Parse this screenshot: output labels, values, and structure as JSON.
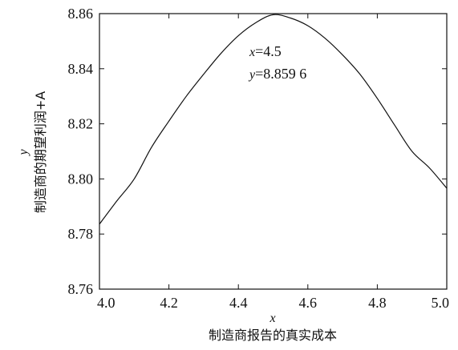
{
  "chart_data": {
    "type": "line",
    "title": "",
    "xlabel_var": "x",
    "xlabel": "制造商报告的真实成本",
    "ylabel_var": "y",
    "ylabel": "制造商的期望利润+A",
    "xlim": [
      4.0,
      5.0
    ],
    "ylim": [
      8.76,
      8.86
    ],
    "xticks": [
      4.0,
      4.2,
      4.4,
      4.6,
      4.8,
      5.0
    ],
    "xtick_labels": [
      "4.0",
      "4.2",
      "4.4",
      "4.6",
      "4.8",
      "5.0"
    ],
    "yticks": [
      8.76,
      8.78,
      8.8,
      8.82,
      8.84,
      8.86
    ],
    "ytick_labels": [
      "8.76",
      "8.78",
      "8.80",
      "8.82",
      "8.84",
      "8.86"
    ],
    "grid": false,
    "series": [
      {
        "x": [
          4.0,
          4.05,
          4.1,
          4.15,
          4.2,
          4.25,
          4.3,
          4.35,
          4.4,
          4.45,
          4.5,
          4.55,
          4.6,
          4.65,
          4.7,
          4.75,
          4.8,
          4.85,
          4.9,
          4.95,
          5.0
        ],
        "values": [
          8.7836,
          8.792,
          8.8,
          8.8115,
          8.821,
          8.83,
          8.838,
          8.8456,
          8.852,
          8.8567,
          8.8596,
          8.8584,
          8.8556,
          8.851,
          8.845,
          8.838,
          8.8292,
          8.8195,
          8.81,
          8.804,
          8.7966
        ],
        "color": "#111111"
      }
    ],
    "annotations": [
      {
        "var": "x",
        "text": "=4.5"
      },
      {
        "var": "y",
        "text": "=8.859 6"
      }
    ]
  }
}
